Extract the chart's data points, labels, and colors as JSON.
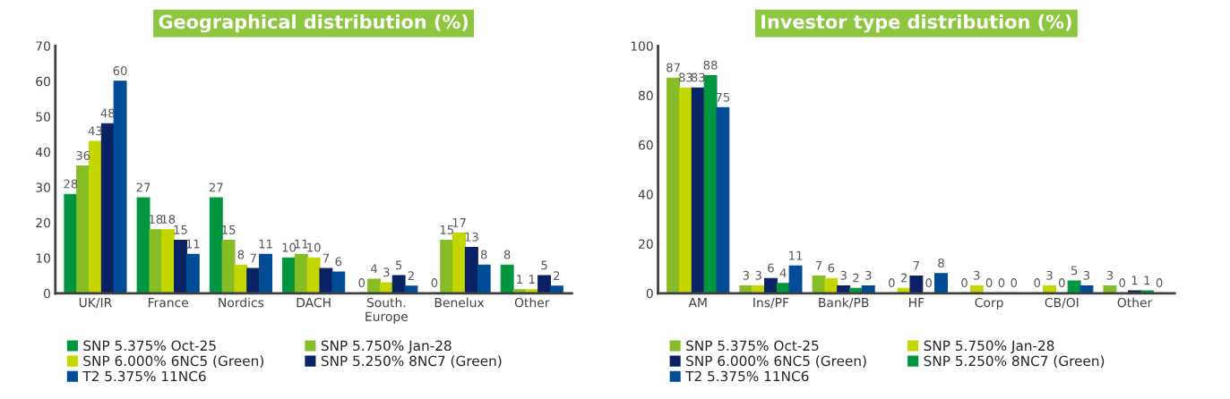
{
  "chart_data": [
    {
      "type": "bar",
      "title": "Geographical distribution (%)",
      "categories": [
        "UK/IR",
        "France",
        "Nordics",
        "DACH",
        "South.\nEurope",
        "Benelux",
        "Other"
      ],
      "ylim": [
        0,
        70
      ],
      "yticks": [
        0,
        10,
        20,
        30,
        40,
        50,
        60,
        70
      ],
      "grid": false,
      "legend": "bottom",
      "data_labels": true,
      "series": [
        {
          "name": "SNP 5.375% Oct-25",
          "color": "#009640",
          "values": [
            28,
            27,
            27,
            10,
            0,
            0,
            8
          ]
        },
        {
          "name": "SNP 5.750% Jan-28",
          "color": "#86bc25",
          "values": [
            36,
            18,
            15,
            11,
            4,
            15,
            1
          ]
        },
        {
          "name": "SNP 6.000% 6NC5 (Green)",
          "color": "#c4d600",
          "values": [
            43,
            18,
            8,
            10,
            3,
            17,
            1
          ]
        },
        {
          "name": "SNP 5.250% 8NC7 (Green)",
          "color": "#0a2163",
          "values": [
            48,
            15,
            7,
            7,
            5,
            13,
            5
          ]
        },
        {
          "name": "T2 5.375% 11NC6",
          "color": "#004c97",
          "values": [
            60,
            11,
            11,
            6,
            2,
            8,
            2
          ]
        }
      ]
    },
    {
      "type": "bar",
      "title": "Investor type distribution (%)",
      "categories": [
        "AM",
        "Ins/PF",
        "Bank/PB",
        "HF",
        "Corp",
        "CB/OI",
        "Other"
      ],
      "ylim": [
        0,
        100
      ],
      "yticks": [
        0,
        20,
        40,
        60,
        80,
        100
      ],
      "grid": false,
      "legend": "bottom",
      "data_labels": true,
      "series": [
        {
          "name": "SNP 5.375% Oct-25",
          "color": "#86bc25",
          "values": [
            87,
            3,
            7,
            0,
            0,
            0,
            3
          ]
        },
        {
          "name": "SNP 5.750% Jan-28",
          "color": "#c4d600",
          "values": [
            83,
            3,
            6,
            2,
            3,
            3,
            0
          ]
        },
        {
          "name": "SNP 6.000% 6NC5 (Green)",
          "color": "#0a2163",
          "values": [
            83,
            6,
            3,
            7,
            0,
            0,
            1
          ]
        },
        {
          "name": "SNP 5.250% 8NC7 (Green)",
          "color": "#009640",
          "values": [
            88,
            4,
            2,
            0,
            0,
            5,
            1
          ]
        },
        {
          "name": "T2 5.375% 11NC6",
          "color": "#004c97",
          "values": [
            75,
            11,
            3,
            8,
            0,
            3,
            0
          ]
        }
      ]
    }
  ]
}
